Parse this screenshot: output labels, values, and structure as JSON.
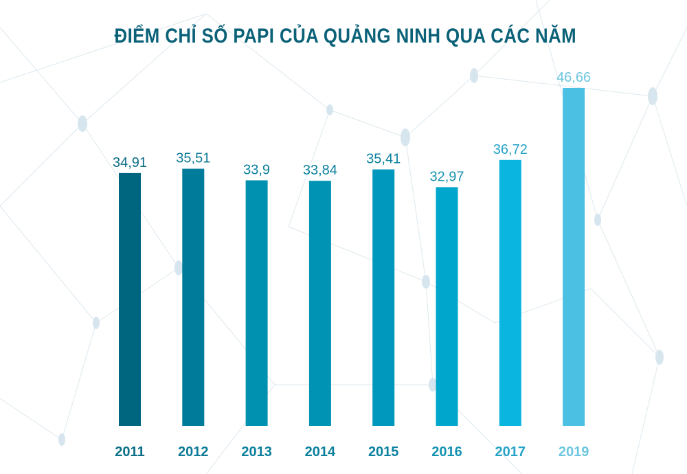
{
  "chart_data": {
    "type": "bar",
    "title": "ĐIỂM CHỈ SỐ PAPI CỦA QUẢNG NINH QUA CÁC NĂM",
    "categories": [
      "2011",
      "2012",
      "2013",
      "2014",
      "2015",
      "2016",
      "2017",
      "2019"
    ],
    "values": [
      34.91,
      35.51,
      33.9,
      33.84,
      35.41,
      32.97,
      36.72,
      46.66
    ],
    "value_labels": [
      "34,91",
      "35,51",
      "33,9",
      "33,84",
      "35,41",
      "32,97",
      "36,72",
      "46,66"
    ],
    "bar_colors": [
      "#006680",
      "#007b99",
      "#0090b0",
      "#0093b3",
      "#0098bd",
      "#00a6cc",
      "#0ab5e0",
      "#4cc0e2"
    ],
    "label_colors": [
      "#0b6f87",
      "#0b7a95",
      "#0a7f9b",
      "#0a7f9b",
      "#0a819e",
      "#1592b0",
      "#24a3c6",
      "#6dc6e0"
    ],
    "xlabel": "",
    "ylabel": "",
    "ylim": [
      0,
      46.66
    ],
    "grid": false,
    "legend": "none"
  },
  "colors": {
    "title": "#0a6178",
    "background": "#ffffff"
  }
}
